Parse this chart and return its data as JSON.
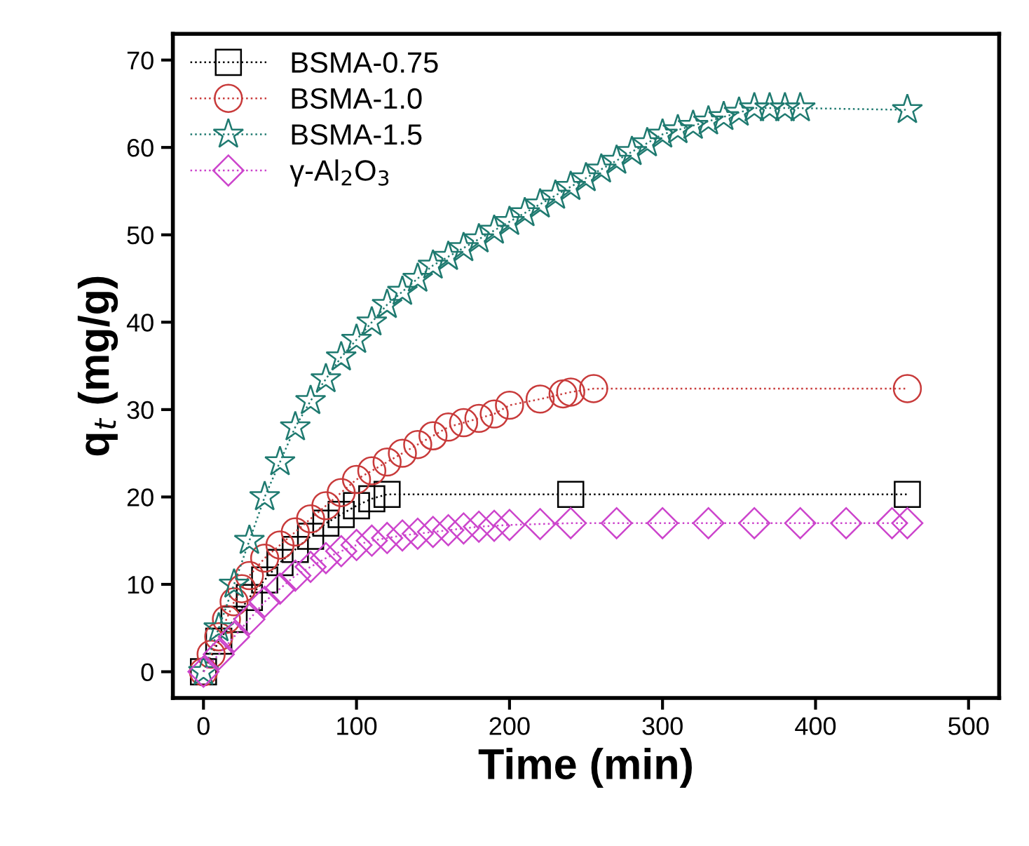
{
  "chart_data": {
    "type": "line",
    "xlabel": "Time (min)",
    "ylabel": "q$_{t}$ (mg/g)",
    "xlim": [
      -20,
      520
    ],
    "ylim": [
      -3,
      73
    ],
    "xticks": [
      0,
      100,
      200,
      300,
      400,
      500
    ],
    "yticks": [
      0,
      10,
      20,
      30,
      40,
      50,
      60,
      70
    ],
    "grid": false,
    "legend": "top left",
    "line_style": "dotted",
    "series": [
      {
        "name": "BSMA-0.75",
        "color": "#000000",
        "marker": "square",
        "x": [
          0,
          10,
          20,
          30,
          40,
          50,
          60,
          70,
          80,
          90,
          100,
          110,
          120,
          240,
          460
        ],
        "values": [
          0,
          3.5,
          6,
          8.5,
          10.5,
          12.5,
          14,
          15.5,
          17,
          18,
          19,
          19.8,
          20.3,
          20.3,
          20.3
        ]
      },
      {
        "name": "BSMA-1.0",
        "color": "#c83a3a",
        "marker": "circle",
        "x": [
          0,
          5,
          10,
          15,
          20,
          25,
          30,
          40,
          50,
          60,
          70,
          80,
          90,
          100,
          110,
          120,
          130,
          140,
          150,
          160,
          170,
          180,
          190,
          200,
          220,
          235,
          240,
          255,
          460
        ],
        "values": [
          0,
          2,
          4,
          6,
          8,
          9.5,
          11,
          13,
          14.5,
          16,
          17.5,
          19,
          20.5,
          22,
          23,
          24,
          25,
          26,
          27,
          28,
          28.5,
          29,
          29.5,
          30.5,
          31.2,
          31.8,
          32,
          32.4,
          32.4
        ]
      },
      {
        "name": "BSMA-1.5",
        "color": "#1f7a70",
        "marker": "star",
        "x": [
          0,
          10,
          20,
          30,
          40,
          50,
          60,
          70,
          80,
          90,
          100,
          110,
          120,
          130,
          140,
          150,
          160,
          170,
          180,
          190,
          200,
          210,
          220,
          230,
          240,
          250,
          260,
          270,
          280,
          290,
          300,
          310,
          320,
          330,
          340,
          350,
          360,
          370,
          380,
          390,
          460
        ],
        "values": [
          0,
          5,
          10,
          15,
          20,
          24,
          28,
          31,
          33.5,
          36,
          38,
          40,
          42,
          43.5,
          45,
          46.5,
          47.5,
          48.5,
          49.5,
          50.5,
          51.5,
          52.5,
          53.5,
          54.5,
          55.5,
          56.5,
          57.5,
          58.5,
          59.5,
          60.5,
          61.5,
          62,
          62.5,
          63,
          63.5,
          64,
          64.5,
          64.5,
          64.5,
          64.5,
          64.3
        ]
      },
      {
        "name": "γ-Al$_{2}$O$_{3}$",
        "color": "#cc44cc",
        "marker": "diamond",
        "x": [
          0,
          10,
          20,
          30,
          40,
          50,
          60,
          70,
          80,
          90,
          100,
          110,
          120,
          130,
          140,
          150,
          160,
          170,
          180,
          190,
          200,
          220,
          240,
          270,
          300,
          330,
          360,
          390,
          420,
          450,
          460
        ],
        "values": [
          0,
          2,
          4,
          6,
          8,
          9.5,
          11,
          12,
          13,
          13.8,
          14.5,
          15,
          15.3,
          15.6,
          15.8,
          16,
          16.2,
          16.4,
          16.6,
          16.7,
          16.8,
          16.9,
          17,
          17,
          17,
          17,
          17,
          17,
          17,
          17,
          17
        ]
      }
    ]
  }
}
